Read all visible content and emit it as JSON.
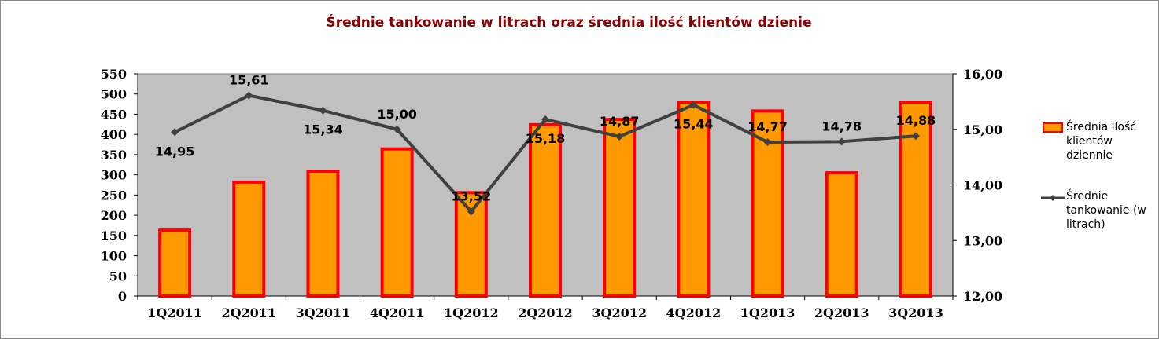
{
  "chart_data": {
    "type": "bar",
    "title": "Średnie tankowanie w litrach oraz średnia ilość klientów dzienie",
    "categories": [
      "1Q2011",
      "2Q2011",
      "3Q2011",
      "4Q2011",
      "1Q2012",
      "2Q2012",
      "3Q2012",
      "4Q2012",
      "1Q2013",
      "2Q2013",
      "3Q2013"
    ],
    "series": [
      {
        "name": "Średnia ilość klientów dziennie",
        "type": "bar",
        "axis": "left",
        "color": "#ff9900",
        "border_color": "#ff0000",
        "values": [
          163,
          282,
          309,
          364,
          256,
          424,
          437,
          480,
          458,
          305,
          480
        ]
      },
      {
        "name": "Średnie tankowanie (w litrach)",
        "type": "line",
        "axis": "right",
        "color": "#404040",
        "values": [
          14.95,
          15.61,
          15.34,
          15.0,
          13.52,
          15.18,
          14.87,
          15.44,
          14.77,
          14.78,
          14.88
        ],
        "labels": [
          "14,95",
          "15,61",
          "15,34",
          "15,00",
          "13,52",
          "15,18",
          "14,87",
          "15,44",
          "14,77",
          "14,78",
          "14,88"
        ]
      }
    ],
    "y_left": {
      "range": [
        0,
        550
      ],
      "ticks": [
        "0",
        "50",
        "100",
        "150",
        "200",
        "250",
        "300",
        "350",
        "400",
        "450",
        "500",
        "550"
      ]
    },
    "y_right": {
      "range": [
        12,
        16
      ],
      "ticks": [
        "12,00",
        "13,00",
        "14,00",
        "15,00",
        "16,00"
      ]
    },
    "grid": false,
    "plot_background": "#c0c0c0",
    "legend_position": "right"
  },
  "legend": {
    "bar_label": "Średnia ilość klientów dziennie",
    "line_label": "Średnie tankowanie (w litrach)"
  }
}
